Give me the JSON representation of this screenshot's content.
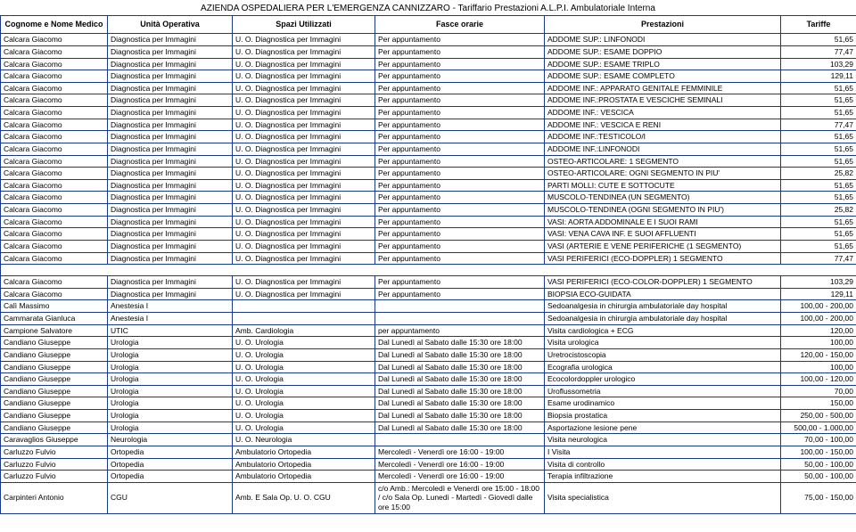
{
  "title": "AZIENDA OSPEDALIERA PER L'EMERGENZA CANNIZZARO -  Tariffario Prestazioni A.L.P.I. Ambulatoriale Interna",
  "columns": [
    "Cognome e Nome Medico",
    "Unità Operativa",
    "Spazi Utilizzati",
    "Fasce orarie",
    "Prestazioni",
    "Tariffe"
  ],
  "rows": [
    [
      "Calcara Giacomo",
      "Diagnostica per Immagini",
      "U. O. Diagnostica per Immagini",
      "Per appuntamento",
      "ADDOME SUP.: LINFONODI",
      "51,65"
    ],
    [
      "Calcara Giacomo",
      "Diagnostica per Immagini",
      "U. O. Diagnostica per Immagini",
      "Per appuntamento",
      "ADDOME SUP.: ESAME DOPPIO",
      "77,47"
    ],
    [
      "Calcara Giacomo",
      "Diagnostica per Immagini",
      "U. O. Diagnostica per Immagini",
      "Per appuntamento",
      "ADDOME SUP.: ESAME TRIPLO",
      "103,29"
    ],
    [
      "Calcara Giacomo",
      "Diagnostica per Immagini",
      "U. O. Diagnostica per Immagini",
      "Per appuntamento",
      "ADDOME SUP.: ESAME COMPLETO",
      "129,11"
    ],
    [
      "Calcara Giacomo",
      "Diagnostica per Immagini",
      "U. O. Diagnostica per Immagini",
      "Per appuntamento",
      "ADDOME INF.: APPARATO GENITALE FEMMINILE",
      "51,65"
    ],
    [
      "Calcara Giacomo",
      "Diagnostica per Immagini",
      "U. O. Diagnostica per Immagini",
      "Per appuntamento",
      "ADDOME INF.:PROSTATA E VESCICHE SEMINALI",
      "51,65"
    ],
    [
      "Calcara Giacomo",
      "Diagnostica per Immagini",
      "U. O. Diagnostica per Immagini",
      "Per appuntamento",
      "ADDOME INF.: VESCICA",
      "51,65"
    ],
    [
      "Calcara Giacomo",
      "Diagnostica per Immagini",
      "U. O. Diagnostica per Immagini",
      "Per appuntamento",
      "ADDOME INF.: VESCICA E RENI",
      "77,47"
    ],
    [
      "Calcara Giacomo",
      "Diagnostica per Immagini",
      "U. O. Diagnostica per Immagini",
      "Per appuntamento",
      "ADDOME INF.:TESTICOLO/I",
      "51,65"
    ],
    [
      "Calcara Giacomo",
      "Diagnostica per Immagini",
      "U. O. Diagnostica per Immagini",
      "Per appuntamento",
      "ADDOME INF.:LINFONODI",
      "51,65"
    ],
    [
      "Calcara Giacomo",
      "Diagnostica per Immagini",
      "U. O. Diagnostica per Immagini",
      "Per appuntamento",
      "OSTEO-ARTICOLARE: 1 SEGMENTO",
      "51,65"
    ],
    [
      "Calcara Giacomo",
      "Diagnostica per Immagini",
      "U. O. Diagnostica per Immagini",
      "Per appuntamento",
      "OSTEO-ARTICOLARE: OGNI SEGMENTO IN PIU'",
      "25,82"
    ],
    [
      "Calcara Giacomo",
      "Diagnostica per Immagini",
      "U. O. Diagnostica per Immagini",
      "Per appuntamento",
      "PARTI MOLLI: CUTE E SOTTOCUTE",
      "51,65"
    ],
    [
      "Calcara Giacomo",
      "Diagnostica per Immagini",
      "U. O. Diagnostica per Immagini",
      "Per appuntamento",
      "MUSCOLO-TENDINEA (UN SEGMENTO)",
      "51,65"
    ],
    [
      "Calcara Giacomo",
      "Diagnostica per Immagini",
      "U. O. Diagnostica per Immagini",
      "Per appuntamento",
      "MUSCOLO-TENDINEA (OGNI SEGMENTO IN PIU')",
      "25,82"
    ],
    [
      "Calcara Giacomo",
      "Diagnostica per Immagini",
      "U. O. Diagnostica per Immagini",
      "Per appuntamento",
      "VASI: AORTA ADDOMINALE E I SUOI RAMI",
      "51,65"
    ],
    [
      "Calcara Giacomo",
      "Diagnostica per Immagini",
      "U. O. Diagnostica per Immagini",
      "Per appuntamento",
      "VASI: VENA CAVA INF. E SUOI AFFLUENTI",
      "51,65"
    ],
    [
      "Calcara Giacomo",
      "Diagnostica per Immagini",
      "U. O. Diagnostica per Immagini",
      "Per appuntamento",
      "VASI (ARTERIE E VENE PERIFERICHE (1 SEGMENTO)",
      "51,65"
    ],
    [
      "Calcara Giacomo",
      "Diagnostica per Immagini",
      "U. O. Diagnostica per Immagini",
      "Per appuntamento",
      "VASI PERIFERICI (ECO-DOPPLER) 1 SEGMENTO",
      "77,47"
    ],
    [
      "__SPACER__",
      "",
      "",
      "",
      "",
      ""
    ],
    [
      "Calcara Giacomo",
      "Diagnostica per Immagini",
      "U. O. Diagnostica per Immagini",
      "Per appuntamento",
      "VASI PERIFERICI (ECO-COLOR-DOPPLER) 1 SEGMENTO",
      "103,29"
    ],
    [
      "Calcara Giacomo",
      "Diagnostica per Immagini",
      "U. O. Diagnostica per Immagini",
      "Per appuntamento",
      "BIOPSIA ECO-GUIDATA",
      "129,11"
    ],
    [
      "Calì Massimo",
      "Anestesia I",
      "",
      "",
      "Sedoanalgesia in chirurgia ambulatoriale day hospital",
      "100,00 - 200,00"
    ],
    [
      "Cammarata Gianluca",
      "Anestesia I",
      "",
      "",
      "Sedoanalgesia in chirurgia ambulatoriale day hospital",
      "100,00 - 200,00"
    ],
    [
      "Campione Salvatore",
      "UTIC",
      "Amb. Cardiologia",
      "per appuntamento",
      "Visita cardiologica + ECG",
      "120,00"
    ],
    [
      "Candiano Giuseppe",
      "Urologia",
      "U. O. Urologia",
      "Dal Lunedì al Sabato dalle 15:30 ore 18:00",
      "Visita urologica",
      "100,00"
    ],
    [
      "Candiano Giuseppe",
      "Urologia",
      "U. O. Urologia",
      "Dal Lunedì al Sabato dalle 15:30 ore 18:00",
      "Uretrocistoscopia",
      "120,00 - 150,00"
    ],
    [
      "Candiano Giuseppe",
      "Urologia",
      "U. O. Urologia",
      "Dal Lunedì al Sabato dalle 15:30 ore 18:00",
      "Ecografia urologica",
      "100,00"
    ],
    [
      "Candiano Giuseppe",
      "Urologia",
      "U. O. Urologia",
      "Dal Lunedì al Sabato dalle 15:30 ore 18:00",
      "Ecocolordoppler urologico",
      "100,00 - 120,00"
    ],
    [
      "Candiano Giuseppe",
      "Urologia",
      "U. O. Urologia",
      "Dal Lunedì al Sabato dalle 15:30 ore 18:00",
      "Uroflussometria",
      "70,00"
    ],
    [
      "Candiano Giuseppe",
      "Urologia",
      "U. O. Urologia",
      "Dal Lunedì al Sabato dalle 15:30 ore 18:00",
      "Esame urodinamico",
      "150,00"
    ],
    [
      "Candiano Giuseppe",
      "Urologia",
      "U. O. Urologia",
      "Dal Lunedì al Sabato dalle 15:30 ore 18:00",
      "Biopsia prostatica",
      "250,00 - 500,00"
    ],
    [
      "Candiano Giuseppe",
      "Urologia",
      "U. O. Urologia",
      "Dal Lunedì al Sabato dalle 15:30 ore 18:00",
      "Asportazione lesione pene",
      "500,00 - 1.000,00"
    ],
    [
      "Caravaglios Giuseppe",
      "Neurologia",
      "U. O. Neurologia",
      "",
      "Visita neurologica",
      "70,00 - 100,00"
    ],
    [
      "Carluzzo Fulvio",
      "Ortopedia",
      "Ambulatorio Ortopedia",
      "Mercoledì - Venerdì ore 16:00 - 19:00",
      "I Visita",
      "100,00 - 150,00"
    ],
    [
      "Carluzzo Fulvio",
      "Ortopedia",
      "Ambulatorio Ortopedia",
      "Mercoledì - Venerdì ore 16:00 - 19:00",
      "Visita di controllo",
      "50,00 - 100,00"
    ],
    [
      "Carluzzo Fulvio",
      "Ortopedia",
      "Ambulatorio Ortopedia",
      "Mercoledì - Venerdì ore 16:00 - 19:00",
      "Terapia infiltrazione",
      "50,00 - 100,00"
    ],
    [
      "Carpinteri Antonio",
      "CGU",
      "Amb. E Sala Op. U. O. CGU",
      "c/o Amb.: Mercoledì e Venerdì ore 15:00 - 18:00 / c/o Sala Op. Lunedì - Martedì - Giovedì dalle ore 15:00",
      "Visita specialistica",
      "75,00 - 150,00"
    ]
  ],
  "wrapHoursFrom": 25
}
